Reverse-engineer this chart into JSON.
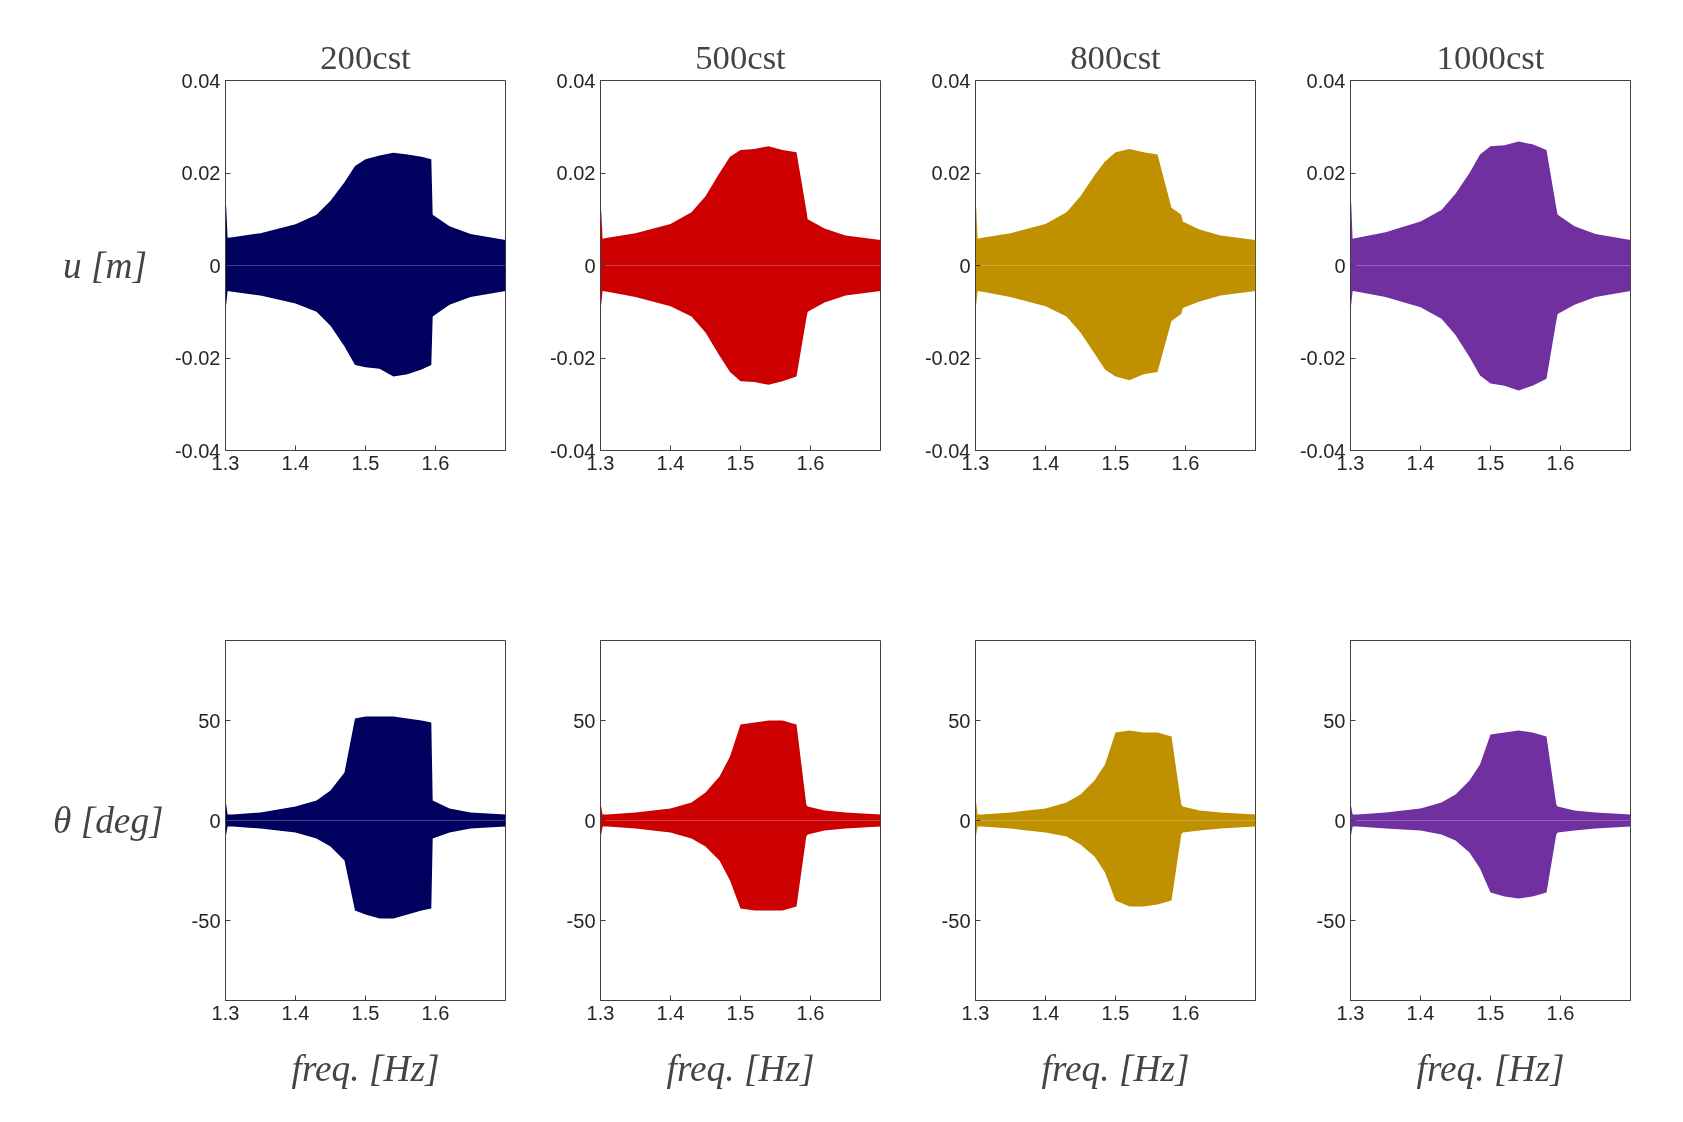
{
  "chart_data": [
    {
      "type": "area",
      "title": "200cst",
      "ylabel": "u [m]",
      "xlim": [
        1.3,
        1.7
      ],
      "ylim": [
        -0.04,
        0.04
      ],
      "xticks": [
        1.3,
        1.4,
        1.5,
        1.6
      ],
      "yticks": [
        -0.04,
        -0.02,
        0,
        0.02,
        0.04
      ],
      "x": [
        1.3,
        1.301,
        1.303,
        1.31,
        1.35,
        1.4,
        1.43,
        1.45,
        1.47,
        1.485,
        1.5,
        1.52,
        1.54,
        1.56,
        1.58,
        1.594,
        1.596,
        1.62,
        1.65,
        1.7
      ],
      "series": [
        {
          "color": "#00005e",
          "values": [
            0.0127,
            0.0127,
            0.006,
            0.0061,
            0.007,
            0.0089,
            0.011,
            0.014,
            0.018,
            0.0215,
            0.023,
            0.0238,
            0.0244,
            0.024,
            0.0235,
            0.023,
            0.011,
            0.0085,
            0.0068,
            0.0055
          ]
        },
        {
          "color": "#00005e",
          "values": [
            -0.0085,
            -0.0085,
            -0.0055,
            -0.0057,
            -0.0065,
            -0.0082,
            -0.01,
            -0.013,
            -0.0175,
            -0.0215,
            -0.022,
            -0.0223,
            -0.024,
            -0.0235,
            -0.0225,
            -0.0215,
            -0.011,
            -0.0085,
            -0.0068,
            -0.0055
          ]
        }
      ]
    },
    {
      "type": "area",
      "title": "500cst",
      "xlim": [
        1.3,
        1.7
      ],
      "ylim": [
        -0.04,
        0.04
      ],
      "xticks": [
        1.3,
        1.4,
        1.5,
        1.6
      ],
      "yticks": [
        -0.04,
        -0.02,
        0,
        0.02,
        0.04
      ],
      "x": [
        1.3,
        1.301,
        1.303,
        1.31,
        1.35,
        1.4,
        1.43,
        1.45,
        1.47,
        1.485,
        1.5,
        1.52,
        1.54,
        1.56,
        1.58,
        1.594,
        1.596,
        1.62,
        1.65,
        1.7
      ],
      "series": [
        {
          "color": "#cc0000",
          "values": [
            0.012,
            0.012,
            0.0058,
            0.006,
            0.007,
            0.009,
            0.0115,
            0.015,
            0.02,
            0.0235,
            0.025,
            0.0252,
            0.0258,
            0.025,
            0.0245,
            0.012,
            0.01,
            0.008,
            0.0065,
            0.0055
          ]
        },
        {
          "color": "#cc0000",
          "values": [
            -0.0085,
            -0.0085,
            -0.0055,
            -0.0057,
            -0.0068,
            -0.0088,
            -0.011,
            -0.0145,
            -0.0195,
            -0.023,
            -0.025,
            -0.0252,
            -0.0258,
            -0.025,
            -0.024,
            -0.0115,
            -0.01,
            -0.008,
            -0.0065,
            -0.0055
          ]
        }
      ]
    },
    {
      "type": "area",
      "title": "800cst",
      "xlim": [
        1.3,
        1.7
      ],
      "ylim": [
        -0.04,
        0.04
      ],
      "xticks": [
        1.3,
        1.4,
        1.5,
        1.6
      ],
      "yticks": [
        -0.04,
        -0.02,
        0,
        0.02,
        0.04
      ],
      "x": [
        1.3,
        1.301,
        1.303,
        1.31,
        1.35,
        1.4,
        1.43,
        1.45,
        1.47,
        1.485,
        1.5,
        1.52,
        1.54,
        1.56,
        1.58,
        1.594,
        1.596,
        1.62,
        1.65,
        1.7
      ],
      "series": [
        {
          "color": "#bf9000",
          "values": [
            0.0125,
            0.0125,
            0.0058,
            0.006,
            0.007,
            0.009,
            0.0115,
            0.015,
            0.0195,
            0.0225,
            0.0245,
            0.0252,
            0.0245,
            0.024,
            0.0125,
            0.011,
            0.0095,
            0.0078,
            0.0065,
            0.0055
          ]
        },
        {
          "color": "#bf9000",
          "values": [
            -0.0085,
            -0.0085,
            -0.0055,
            -0.0057,
            -0.0068,
            -0.0088,
            -0.011,
            -0.0145,
            -0.019,
            -0.0225,
            -0.024,
            -0.0248,
            -0.0235,
            -0.023,
            -0.012,
            -0.0105,
            -0.0092,
            -0.0078,
            -0.0065,
            -0.0055
          ]
        }
      ]
    },
    {
      "type": "area",
      "title": "1000cst",
      "xlim": [
        1.3,
        1.7
      ],
      "ylim": [
        -0.04,
        0.04
      ],
      "xticks": [
        1.3,
        1.4,
        1.5,
        1.6
      ],
      "yticks": [
        -0.04,
        -0.02,
        0,
        0.02,
        0.04
      ],
      "x": [
        1.3,
        1.301,
        1.303,
        1.31,
        1.35,
        1.4,
        1.43,
        1.45,
        1.47,
        1.485,
        1.5,
        1.52,
        1.54,
        1.56,
        1.58,
        1.594,
        1.596,
        1.62,
        1.65,
        1.7
      ],
      "series": [
        {
          "color": "#7030a0",
          "values": [
            0.0135,
            0.0135,
            0.0058,
            0.006,
            0.0072,
            0.0095,
            0.012,
            0.0155,
            0.02,
            0.024,
            0.0258,
            0.026,
            0.0268,
            0.0262,
            0.025,
            0.0125,
            0.011,
            0.0085,
            0.0068,
            0.0055
          ]
        },
        {
          "color": "#7030a0",
          "values": [
            -0.0085,
            -0.0085,
            -0.0055,
            -0.0057,
            -0.0068,
            -0.009,
            -0.0115,
            -0.015,
            -0.0198,
            -0.0238,
            -0.0255,
            -0.026,
            -0.027,
            -0.026,
            -0.0245,
            -0.012,
            -0.0105,
            -0.0085,
            -0.0068,
            -0.0055
          ]
        }
      ]
    },
    {
      "type": "area",
      "ylabel": "θ [deg]",
      "xlabel": "freq. [Hz]",
      "xlim": [
        1.3,
        1.7
      ],
      "ylim": [
        -90,
        90
      ],
      "xticks": [
        1.3,
        1.4,
        1.5,
        1.6
      ],
      "yticks": [
        -50,
        0,
        50
      ],
      "x": [
        1.3,
        1.301,
        1.303,
        1.31,
        1.35,
        1.4,
        1.43,
        1.45,
        1.47,
        1.485,
        1.5,
        1.52,
        1.54,
        1.56,
        1.58,
        1.594,
        1.596,
        1.62,
        1.65,
        1.7
      ],
      "series": [
        {
          "color": "#00005e",
          "values": [
            8,
            8,
            3,
            3,
            4,
            7,
            10,
            15,
            24,
            51,
            52,
            52,
            52,
            51,
            50,
            49,
            10,
            6,
            4,
            3
          ]
        },
        {
          "color": "#00005e",
          "values": [
            -7,
            -7,
            -3,
            -3,
            -4,
            -6,
            -9,
            -13,
            -20,
            -45,
            -47,
            -49,
            -49,
            -47,
            -45,
            -44,
            -9,
            -6,
            -4,
            -3
          ]
        }
      ]
    },
    {
      "type": "area",
      "xlabel": "freq. [Hz]",
      "xlim": [
        1.3,
        1.7
      ],
      "ylim": [
        -90,
        90
      ],
      "xticks": [
        1.3,
        1.4,
        1.5,
        1.6
      ],
      "yticks": [
        -50,
        0,
        50
      ],
      "x": [
        1.3,
        1.301,
        1.303,
        1.31,
        1.35,
        1.4,
        1.43,
        1.45,
        1.47,
        1.485,
        1.5,
        1.52,
        1.54,
        1.56,
        1.58,
        1.594,
        1.596,
        1.62,
        1.65,
        1.7
      ],
      "series": [
        {
          "color": "#cc0000",
          "values": [
            7,
            7,
            3,
            3,
            4,
            6,
            9,
            14,
            22,
            32,
            48,
            49,
            50,
            50,
            48,
            8,
            7,
            5,
            4,
            3
          ]
        },
        {
          "color": "#cc0000",
          "values": [
            -7,
            -7,
            -3,
            -3,
            -4,
            -6,
            -9,
            -13,
            -20,
            -30,
            -44,
            -45,
            -45,
            -45,
            -43,
            -8,
            -7,
            -5,
            -4,
            -3
          ]
        }
      ]
    },
    {
      "type": "area",
      "xlabel": "freq. [Hz]",
      "xlim": [
        1.3,
        1.7
      ],
      "ylim": [
        -90,
        90
      ],
      "xticks": [
        1.3,
        1.4,
        1.5,
        1.6
      ],
      "yticks": [
        -50,
        0,
        50
      ],
      "x": [
        1.3,
        1.301,
        1.303,
        1.31,
        1.35,
        1.4,
        1.43,
        1.45,
        1.47,
        1.485,
        1.5,
        1.52,
        1.54,
        1.56,
        1.58,
        1.594,
        1.596,
        1.62,
        1.65,
        1.7
      ],
      "series": [
        {
          "color": "#bf9000",
          "values": [
            9,
            9,
            3,
            3,
            4,
            6,
            9,
            13,
            20,
            28,
            44,
            45,
            44,
            44,
            42,
            8,
            7,
            5,
            4,
            3
          ]
        },
        {
          "color": "#bf9000",
          "values": [
            -7,
            -7,
            -3,
            -3,
            -4,
            -6,
            -8,
            -12,
            -18,
            -26,
            -40,
            -43,
            -43,
            -42,
            -40,
            -7,
            -6,
            -5,
            -4,
            -3
          ]
        }
      ]
    },
    {
      "type": "area",
      "xlabel": "freq. [Hz]",
      "xlim": [
        1.3,
        1.7
      ],
      "ylim": [
        -90,
        90
      ],
      "xticks": [
        1.3,
        1.4,
        1.5,
        1.6
      ],
      "yticks": [
        -50,
        0,
        50
      ],
      "x": [
        1.3,
        1.301,
        1.303,
        1.31,
        1.35,
        1.4,
        1.43,
        1.45,
        1.47,
        1.485,
        1.5,
        1.52,
        1.54,
        1.56,
        1.58,
        1.594,
        1.596,
        1.62,
        1.65,
        1.7
      ],
      "series": [
        {
          "color": "#7030a0",
          "values": [
            7,
            7,
            3,
            3,
            4,
            6,
            9,
            13,
            20,
            28,
            43,
            44,
            45,
            44,
            42,
            8,
            7,
            5,
            4,
            3
          ]
        },
        {
          "color": "#7030a0",
          "values": [
            -7,
            -7,
            -3,
            -3,
            -4,
            -5,
            -7,
            -10,
            -16,
            -24,
            -36,
            -38,
            -39,
            -38,
            -36,
            -7,
            -6,
            -5,
            -4,
            -3
          ]
        }
      ]
    }
  ]
}
